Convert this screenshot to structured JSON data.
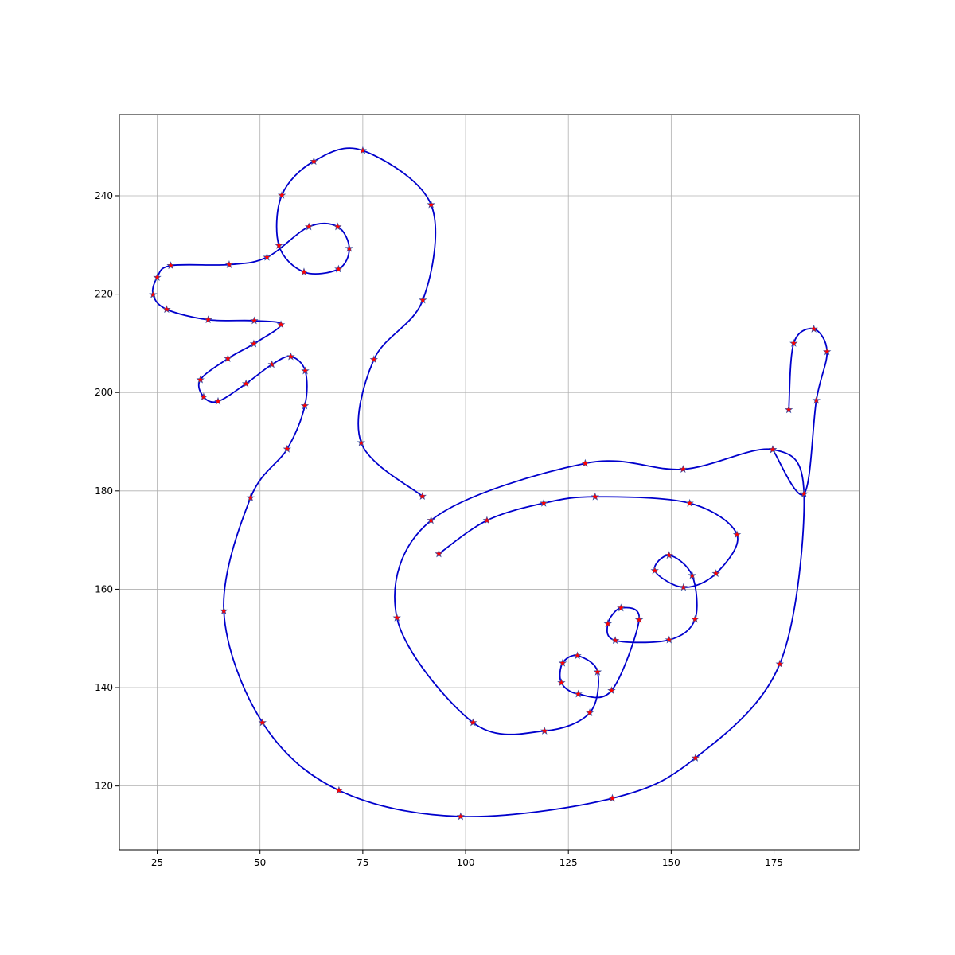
{
  "chart_data": {
    "type": "line",
    "title": "",
    "xlabel": "",
    "ylabel": "",
    "xlim": [
      15.8,
      195.8
    ],
    "ylim": [
      107,
      256.5
    ],
    "grid": true,
    "x_ticks": [
      25,
      50,
      75,
      100,
      125,
      150,
      175
    ],
    "y_ticks": [
      120,
      140,
      160,
      180,
      200,
      220,
      240
    ],
    "colors": {
      "curve": "#0000cc",
      "marker": "#ff0000",
      "marker_edge": "#3355aa",
      "grid": "#b0b0b0"
    },
    "marker_shape": "star",
    "series": [
      {
        "points": [
          [
            89.5,
            178.9
          ],
          [
            74.6,
            189.8
          ],
          [
            77.7,
            206.7
          ],
          [
            89.6,
            218.8
          ],
          [
            91.6,
            238.2
          ],
          [
            75.0,
            249.2
          ],
          [
            63.1,
            247.0
          ],
          [
            55.3,
            240.1
          ],
          [
            54.6,
            229.9
          ],
          [
            60.7,
            224.5
          ],
          [
            69.1,
            225.1
          ],
          [
            71.7,
            229.3
          ],
          [
            68.9,
            233.7
          ],
          [
            61.9,
            233.7
          ],
          [
            51.7,
            227.5
          ],
          [
            42.5,
            226.0
          ],
          [
            28.3,
            225.8
          ],
          [
            25.0,
            223.4
          ],
          [
            24.0,
            219.9
          ],
          [
            27.3,
            216.9
          ],
          [
            37.4,
            214.8
          ],
          [
            48.6,
            214.6
          ],
          [
            55.1,
            213.8
          ],
          [
            48.5,
            209.9
          ],
          [
            42.2,
            206.9
          ],
          [
            35.5,
            202.6
          ],
          [
            36.3,
            199.1
          ],
          [
            39.8,
            198.2
          ],
          [
            46.6,
            201.8
          ],
          [
            52.9,
            205.7
          ],
          [
            57.5,
            207.3
          ],
          [
            61.0,
            204.4
          ],
          [
            60.9,
            197.3
          ],
          [
            56.6,
            188.5
          ],
          [
            47.7,
            178.6
          ],
          [
            41.2,
            155.6
          ],
          [
            50.6,
            132.9
          ],
          [
            69.2,
            119.1
          ],
          [
            98.8,
            113.8
          ],
          [
            135.7,
            117.5
          ],
          [
            155.9,
            125.7
          ],
          [
            176.4,
            144.8
          ],
          [
            182.3,
            179.4
          ],
          [
            174.7,
            188.4
          ],
          [
            152.9,
            184.4
          ],
          [
            129.1,
            185.6
          ],
          [
            91.6,
            174.0
          ],
          [
            83.3,
            154.2
          ],
          [
            101.8,
            132.9
          ],
          [
            119.2,
            131.2
          ],
          [
            130.2,
            134.9
          ],
          [
            132.1,
            143.2
          ],
          [
            127.2,
            146.5
          ],
          [
            123.6,
            145.0
          ],
          [
            123.3,
            141.0
          ],
          [
            127.4,
            138.7
          ],
          [
            135.5,
            139.4
          ],
          [
            142.2,
            153.8
          ],
          [
            137.8,
            156.2
          ],
          [
            134.6,
            153.0
          ],
          [
            136.4,
            149.6
          ],
          [
            149.5,
            149.7
          ],
          [
            155.8,
            153.9
          ],
          [
            155.1,
            162.8
          ],
          [
            149.5,
            166.9
          ],
          [
            146.0,
            163.8
          ],
          [
            153.0,
            160.4
          ],
          [
            160.9,
            163.2
          ],
          [
            166.0,
            171.1
          ],
          [
            154.5,
            177.5
          ],
          [
            131.5,
            178.8
          ],
          [
            119.0,
            177.5
          ],
          [
            105.2,
            174.0
          ],
          [
            93.5,
            167.2
          ]
        ]
      },
      {
        "points": [
          [
            174.7,
            188.4
          ],
          [
            182.3,
            179.4
          ],
          [
            185.3,
            198.4
          ],
          [
            187.9,
            208.3
          ],
          [
            184.7,
            212.9
          ],
          [
            179.8,
            210.0
          ],
          [
            178.6,
            196.5
          ]
        ]
      }
    ]
  }
}
